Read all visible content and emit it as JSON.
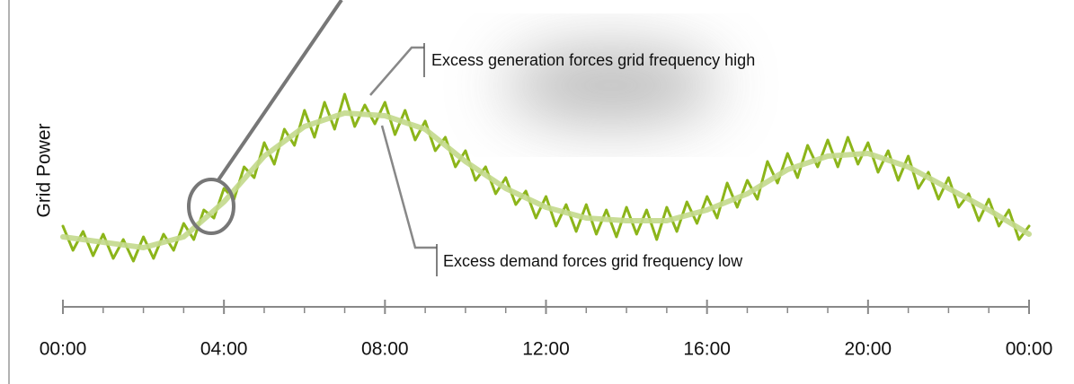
{
  "chart_data": {
    "type": "line",
    "ylabel": "Grid Power",
    "xlim": [
      0,
      24
    ],
    "ylim": [
      0,
      100
    ],
    "xticks": [
      {
        "value": 0,
        "label": "00:00"
      },
      {
        "value": 4,
        "label": "04:00"
      },
      {
        "value": 8,
        "label": "08:00"
      },
      {
        "value": 12,
        "label": "12:00"
      },
      {
        "value": 16,
        "label": "16:00"
      },
      {
        "value": 20,
        "label": "20:00"
      },
      {
        "value": 24,
        "label": "00:00"
      }
    ],
    "xminorticks": [
      1,
      2,
      3,
      5,
      6,
      7,
      9,
      10,
      11,
      13,
      14,
      15,
      17,
      18,
      19,
      21,
      22,
      23
    ],
    "annotations": [
      "Excess generation forces grid frequency high",
      "Excess demand forces grid frequency low"
    ],
    "series": [
      {
        "color": "#8cb51a",
        "x": [
          0,
          0.25,
          0.5,
          0.75,
          1,
          1.25,
          1.5,
          1.75,
          2,
          2.25,
          2.5,
          2.75,
          3,
          3.25,
          3.5,
          3.75,
          4,
          4.25,
          4.5,
          4.75,
          5,
          5.25,
          5.5,
          5.75,
          6,
          6.25,
          6.5,
          6.75,
          7,
          7.25,
          7.5,
          7.75,
          8,
          8.25,
          8.5,
          8.75,
          9,
          9.25,
          9.5,
          9.75,
          10,
          10.25,
          10.5,
          10.75,
          11,
          11.25,
          11.5,
          11.75,
          12,
          12.25,
          12.5,
          12.75,
          13,
          13.25,
          13.5,
          13.75,
          14,
          14.25,
          14.5,
          14.75,
          15,
          15.25,
          15.5,
          15.75,
          16,
          16.25,
          16.5,
          16.75,
          17,
          17.25,
          17.5,
          17.75,
          18,
          18.25,
          18.5,
          18.75,
          19,
          19.25,
          19.5,
          19.75,
          20,
          20.25,
          20.5,
          20.75,
          21,
          21.25,
          21.5,
          21.75,
          22,
          22.25,
          22.5,
          22.75,
          23,
          23.25,
          23.5,
          23.75,
          24
        ],
        "values": [
          30,
          21,
          28,
          19,
          27,
          18,
          25,
          17,
          26,
          18,
          27,
          21,
          31,
          25,
          36,
          33,
          44,
          40,
          52,
          48,
          61,
          53,
          66,
          60,
          73,
          63,
          76,
          66,
          79,
          67,
          75,
          68,
          76,
          64,
          73,
          62,
          69,
          58,
          63,
          52,
          58,
          47,
          52,
          42,
          48,
          38,
          43,
          33,
          41,
          30,
          38,
          28,
          38,
          27,
          36,
          26,
          37,
          27,
          36,
          25,
          37,
          28,
          39,
          31,
          41,
          33,
          46,
          37,
          47,
          40,
          54,
          46,
          57,
          48,
          60,
          52,
          62,
          52,
          63,
          53,
          61,
          50,
          58,
          47,
          56,
          44,
          50,
          40,
          48,
          37,
          42,
          32,
          40,
          30,
          36,
          25,
          30
        ]
      },
      {
        "color": "#c3d98c",
        "x": [
          0,
          1,
          2,
          3,
          4,
          5,
          6,
          7,
          8,
          9,
          10,
          11,
          12,
          13,
          14,
          15,
          16,
          17,
          18,
          19,
          20,
          21,
          22,
          23,
          24
        ],
        "values": [
          26,
          24,
          22,
          26,
          39,
          56,
          67,
          72,
          71,
          66,
          54,
          44,
          37,
          33,
          32,
          32,
          36,
          42,
          51,
          56,
          57,
          52,
          44,
          36,
          27
        ]
      }
    ]
  }
}
